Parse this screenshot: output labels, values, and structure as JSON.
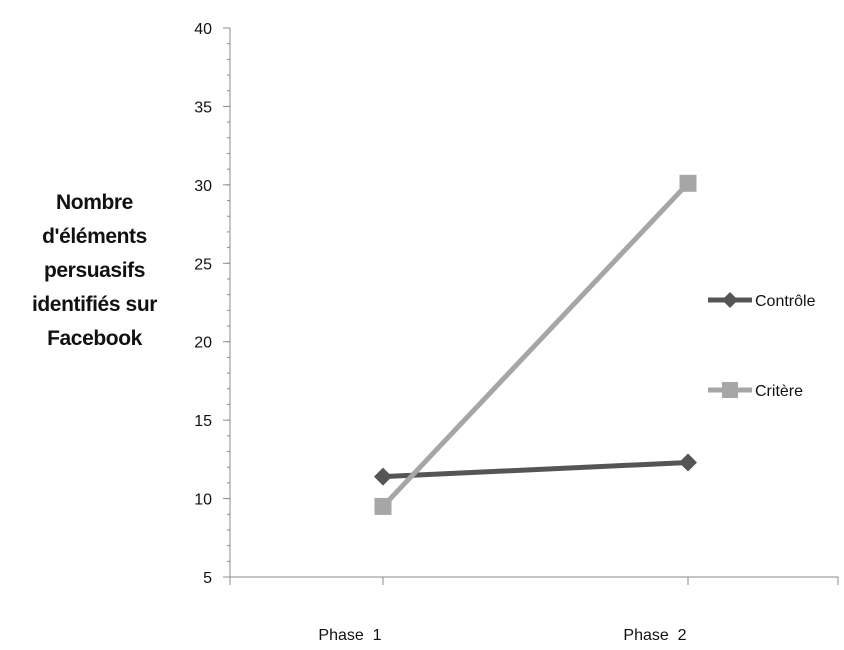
{
  "chart_data": {
    "type": "line",
    "title": "",
    "xlabel": "",
    "ylabel": "Nombre\nd'éléments\npersuasifs\nidentifiés sur\nFacebook",
    "categories": [
      "Phase  1",
      "Phase  2"
    ],
    "ylim": [
      5,
      40
    ],
    "yticks": [
      5,
      10,
      15,
      20,
      25,
      30,
      35,
      40
    ],
    "grid": false,
    "legend_position": "right",
    "series": [
      {
        "name": "Contrôle",
        "values": [
          11.4,
          12.3
        ],
        "color": "#555555",
        "marker": "diamond"
      },
      {
        "name": "Critère",
        "values": [
          9.5,
          30.1
        ],
        "color": "#a6a6a6",
        "marker": "square"
      }
    ]
  }
}
